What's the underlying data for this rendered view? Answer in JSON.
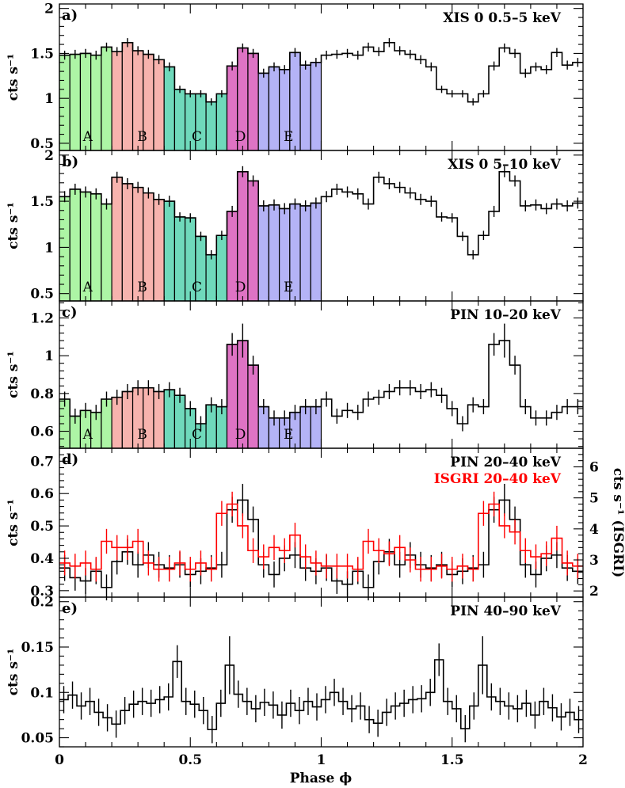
{
  "chart_data": {
    "type": "line",
    "xlabel": "Phase ϕ",
    "xlim": [
      0,
      2
    ],
    "x_ticks": [
      0,
      0.5,
      1,
      1.5,
      2
    ],
    "x_tick_labels": [
      "0",
      "0.5",
      "1",
      "1.5",
      "2"
    ],
    "bin_width": 0.0333,
    "segments": [
      {
        "label": "A",
        "start": 0.0,
        "end": 0.2167,
        "color": "#adf5a5"
      },
      {
        "label": "B",
        "start": 0.2167,
        "end": 0.4167,
        "color": "#f7b3ae"
      },
      {
        "label": "C",
        "start": 0.4167,
        "end": 0.6333,
        "color": "#6fd9bb"
      },
      {
        "label": "D",
        "start": 0.6333,
        "end": 0.75,
        "color": "#de73c4"
      },
      {
        "label": "E",
        "start": 0.75,
        "end": 1.0,
        "color": "#b4b3f6"
      }
    ],
    "panels": [
      {
        "tag": "a)",
        "title": "XIS 0 0.5–5 keV",
        "ylabel": "cts s⁻¹",
        "ylim": [
          0.42,
          2.05
        ],
        "y_ticks": [
          0.5,
          1,
          1.5,
          2
        ],
        "y_tick_labels": [
          "0.5",
          "1",
          "1.5",
          "2"
        ],
        "show_segments": true,
        "series": [
          {
            "name": "XIS 0 0.5–5 keV",
            "color": "#000000",
            "values": [
              1.48,
              1.49,
              1.5,
              1.48,
              1.57,
              1.52,
              1.62,
              1.53,
              1.49,
              1.43,
              1.35,
              1.1,
              1.05,
              1.05,
              0.96,
              1.05,
              1.36,
              1.56,
              1.5,
              1.28,
              1.35,
              1.32,
              1.51,
              1.37,
              1.4
            ],
            "errors": [
              0.05,
              0.05,
              0.05,
              0.05,
              0.05,
              0.05,
              0.05,
              0.05,
              0.05,
              0.05,
              0.05,
              0.04,
              0.04,
              0.04,
              0.04,
              0.04,
              0.05,
              0.05,
              0.05,
              0.05,
              0.05,
              0.05,
              0.05,
              0.05,
              0.05
            ]
          }
        ]
      },
      {
        "tag": "b)",
        "title": "XIS 0 5–10 keV",
        "ylabel": "cts s⁻¹",
        "ylim": [
          0.42,
          2.05
        ],
        "y_ticks": [
          0.5,
          1,
          1.5,
          2
        ],
        "y_tick_labels": [
          "0.5",
          "1",
          "1.5",
          "2"
        ],
        "show_segments": true,
        "series": [
          {
            "name": "XIS 0 5–10 keV",
            "color": "#000000",
            "values": [
              1.55,
              1.63,
              1.6,
              1.58,
              1.47,
              1.76,
              1.69,
              1.65,
              1.59,
              1.52,
              1.5,
              1.33,
              1.32,
              1.12,
              0.92,
              1.13,
              1.39,
              1.82,
              1.72,
              1.45,
              1.46,
              1.42,
              1.47,
              1.45,
              1.48
            ],
            "errors": [
              0.06,
              0.06,
              0.06,
              0.06,
              0.06,
              0.06,
              0.06,
              0.06,
              0.06,
              0.06,
              0.06,
              0.05,
              0.05,
              0.05,
              0.05,
              0.05,
              0.06,
              0.06,
              0.06,
              0.06,
              0.06,
              0.06,
              0.06,
              0.06,
              0.06
            ]
          }
        ]
      },
      {
        "tag": "c)",
        "title": "PIN 10–20 keV",
        "ylabel": "cts s⁻¹",
        "ylim": [
          0.51,
          1.29
        ],
        "y_ticks": [
          0.6,
          0.8,
          1,
          1.2
        ],
        "y_tick_labels": [
          "0.6",
          "0.8",
          "1",
          "1.2"
        ],
        "show_segments": true,
        "series": [
          {
            "name": "PIN 10–20 keV",
            "color": "#000000",
            "values": [
              0.77,
              0.68,
              0.71,
              0.7,
              0.77,
              0.78,
              0.81,
              0.83,
              0.83,
              0.81,
              0.82,
              0.79,
              0.72,
              0.64,
              0.74,
              0.73,
              1.06,
              1.08,
              0.95,
              0.73,
              0.67,
              0.67,
              0.7,
              0.73,
              0.73
            ],
            "errors": [
              0.04,
              0.04,
              0.04,
              0.04,
              0.04,
              0.04,
              0.04,
              0.04,
              0.04,
              0.04,
              0.04,
              0.04,
              0.04,
              0.04,
              0.04,
              0.04,
              0.06,
              0.09,
              0.05,
              0.04,
              0.04,
              0.04,
              0.04,
              0.04,
              0.04
            ]
          }
        ]
      },
      {
        "tag": "d)",
        "title": "PIN 20–40 keV",
        "title2": "ISGRI 20–40 keV",
        "title2_color": "#ff0000",
        "ylabel": "cts s⁻¹",
        "ylim": [
          0.28,
          0.74
        ],
        "y_ticks": [
          0.3,
          0.4,
          0.5,
          0.6,
          0.7
        ],
        "y_tick_labels": [
          "0.3",
          "0.4",
          "0.5",
          "0.6",
          "0.7"
        ],
        "right_ylabel": "cts s⁻¹ (ISGRI)",
        "right_ylim": [
          1.8,
          6.6
        ],
        "right_y_ticks": [
          2,
          3,
          4,
          5,
          6
        ],
        "right_y_tick_labels": [
          "2",
          "3",
          "4",
          "5",
          "6"
        ],
        "show_segments": false,
        "series": [
          {
            "name": "PIN 20–40 keV",
            "color": "#000000",
            "values": [
              0.37,
              0.34,
              0.33,
              0.36,
              0.31,
              0.39,
              0.42,
              0.38,
              0.41,
              0.38,
              0.37,
              0.38,
              0.35,
              0.36,
              0.37,
              0.38,
              0.55,
              0.58,
              0.52,
              0.38,
              0.35,
              0.4,
              0.41,
              0.37,
              0.36,
              0.37,
              0.33,
              0.32,
              0.36,
              0.31,
              0.39,
              0.42,
              0.38,
              0.41,
              0.38,
              0.37,
              0.38,
              0.35,
              0.36,
              0.37,
              0.38,
              0.55,
              0.58,
              0.52,
              0.38,
              0.35,
              0.4,
              0.41,
              0.37,
              0.36
            ],
            "errors": [
              0.04,
              0.04,
              0.04,
              0.04,
              0.04,
              0.04,
              0.04,
              0.04,
              0.04,
              0.04,
              0.04,
              0.04,
              0.04,
              0.04,
              0.04,
              0.04,
              0.04,
              0.05,
              0.04,
              0.04,
              0.04,
              0.04,
              0.04,
              0.04,
              0.04,
              0.04,
              0.04,
              0.04,
              0.04,
              0.04,
              0.04,
              0.04,
              0.04,
              0.04,
              0.04,
              0.04,
              0.04,
              0.04,
              0.04,
              0.04,
              0.04,
              0.04,
              0.05,
              0.04,
              0.04,
              0.04,
              0.04,
              0.04,
              0.04,
              0.04
            ]
          },
          {
            "name": "ISGRI 20–40 keV",
            "color": "#ff0000",
            "axis": "right",
            "values": [
              2.9,
              2.8,
              2.9,
              2.7,
              3.6,
              3.4,
              3.4,
              3.6,
              2.9,
              2.7,
              2.7,
              2.9,
              2.7,
              2.9,
              2.7,
              4.5,
              4.8,
              4.1,
              3.3,
              3.1,
              3.4,
              3.3,
              3.8,
              3.1,
              2.9,
              2.8,
              2.8,
              2.8,
              2.7,
              3.6,
              3.3,
              3.2,
              3.4,
              3.0,
              2.7,
              2.7,
              2.8,
              2.7,
              2.8,
              2.7,
              4.5,
              4.8,
              4.1,
              3.9,
              3.3,
              3.1,
              3.2,
              3.7,
              2.9,
              2.8
            ],
            "errors": [
              0.4,
              0.4,
              0.4,
              0.4,
              0.4,
              0.4,
              0.4,
              0.4,
              0.4,
              0.4,
              0.4,
              0.4,
              0.4,
              0.4,
              0.4,
              0.4,
              0.4,
              0.4,
              0.4,
              0.4,
              0.4,
              0.4,
              0.4,
              0.4,
              0.4,
              0.4,
              0.4,
              0.4,
              0.4,
              0.4,
              0.4,
              0.4,
              0.4,
              0.4,
              0.4,
              0.4,
              0.4,
              0.4,
              0.4,
              0.4,
              0.4,
              0.4,
              0.4,
              0.4,
              0.4,
              0.4,
              0.4,
              0.4,
              0.4,
              0.4
            ]
          }
        ]
      },
      {
        "tag": "e)",
        "title": "PIN 40–90 keV",
        "ylabel": "cts s⁻¹",
        "ylim": [
          0.04,
          0.205
        ],
        "y_ticks": [
          0.05,
          0.1,
          0.15,
          0.2
        ],
        "y_tick_labels": [
          "0.05",
          "0.1",
          "0.15",
          "0.2"
        ],
        "show_segments": false,
        "series": [
          {
            "name": "PIN 40–90 keV",
            "color": "#000000",
            "values": [
              0.092,
              0.097,
              0.085,
              0.09,
              0.078,
              0.072,
              0.065,
              0.08,
              0.087,
              0.09,
              0.088,
              0.092,
              0.095,
              0.134,
              0.09,
              0.087,
              0.08,
              0.059,
              0.088,
              0.13,
              0.098,
              0.09,
              0.082,
              0.089,
              0.086,
              0.075,
              0.088,
              0.08,
              0.09,
              0.084,
              0.092,
              0.1,
              0.09,
              0.082,
              0.085,
              0.07,
              0.066,
              0.078,
              0.085,
              0.088,
              0.092,
              0.093,
              0.1,
              0.136,
              0.09,
              0.082,
              0.06,
              0.085,
              0.13,
              0.095,
              0.09,
              0.085,
              0.082,
              0.088,
              0.075,
              0.09,
              0.083,
              0.073,
              0.078,
              0.07
            ],
            "errors": [
              0.015,
              0.015,
              0.015,
              0.015,
              0.015,
              0.015,
              0.015,
              0.015,
              0.015,
              0.015,
              0.015,
              0.015,
              0.015,
              0.018,
              0.015,
              0.015,
              0.015,
              0.015,
              0.015,
              0.032,
              0.015,
              0.015,
              0.015,
              0.015,
              0.015,
              0.015,
              0.015,
              0.015,
              0.015,
              0.015,
              0.015,
              0.015,
              0.015,
              0.015,
              0.015,
              0.015,
              0.015,
              0.015,
              0.015,
              0.015,
              0.015,
              0.015,
              0.015,
              0.018,
              0.015,
              0.015,
              0.015,
              0.015,
              0.032,
              0.015,
              0.015,
              0.015,
              0.015,
              0.015,
              0.015,
              0.015,
              0.015,
              0.015,
              0.015,
              0.015
            ]
          }
        ]
      }
    ]
  }
}
